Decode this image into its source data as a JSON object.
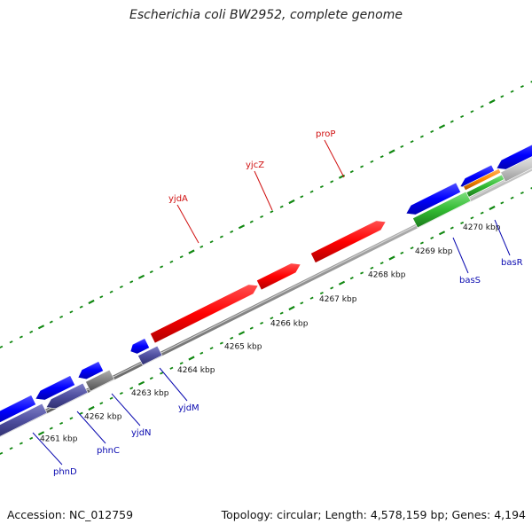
{
  "title": "Escherichia coli BW2952, complete genome",
  "footer": {
    "accession": "Accession: NC_012759",
    "summary": "Topology: circular; Length: 4,578,159 bp; Genes: 4,194"
  },
  "ticks": [
    {
      "label": "4261 kbp"
    },
    {
      "label": "4262 kbp"
    },
    {
      "label": "4263 kbp"
    },
    {
      "label": "4264 kbp"
    },
    {
      "label": "4265 kbp"
    },
    {
      "label": "4266 kbp"
    },
    {
      "label": "4267 kbp"
    },
    {
      "label": "4268 kbp"
    },
    {
      "label": "4269 kbp"
    },
    {
      "label": "4270 kbp"
    }
  ],
  "genes": [
    {
      "name": "yjdA",
      "strand": "forward",
      "color": "#ff0000"
    },
    {
      "name": "yjcZ",
      "strand": "forward",
      "color": "#ff0000"
    },
    {
      "name": "proP",
      "strand": "forward",
      "color": "#ff0000"
    },
    {
      "name": "phnD",
      "strand": "reverse",
      "color": "#0000ff"
    },
    {
      "name": "phnC",
      "strand": "reverse",
      "color": "#0000ff"
    },
    {
      "name": "yjdN",
      "strand": "reverse",
      "color": "#0000ff"
    },
    {
      "name": "yjdM",
      "strand": "reverse",
      "color": "#0000ff"
    },
    {
      "name": "basS",
      "strand": "reverse",
      "color": "#0000ff"
    },
    {
      "name": "basR",
      "strand": "reverse",
      "color": "#0000ff"
    }
  ],
  "colors": {
    "forward_cds": "#ff0000",
    "reverse_cds": "#0000ff",
    "reverse_feature": "#5050a0",
    "misc_feature": "#808080",
    "green_feature": "#33bb33",
    "orange_feature": "#ff8800",
    "backbone": "#8a8a8a",
    "gc_ticks": "#118811"
  }
}
